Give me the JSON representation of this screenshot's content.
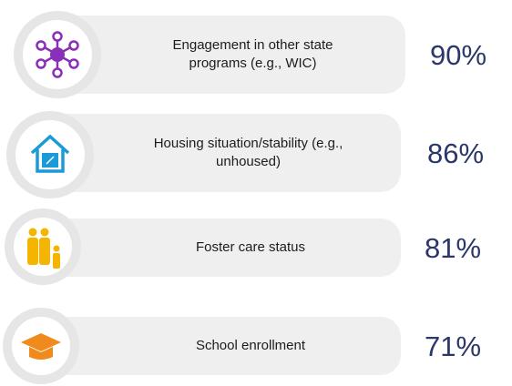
{
  "items": [
    {
      "label": [
        "Engagement in other state",
        "programs (e.g., WIC)"
      ],
      "value": "90%"
    },
    {
      "label": [
        "Housing situation/stability (e.g.,",
        "unhoused)"
      ],
      "value": "86%"
    },
    {
      "label": [
        "Foster care status"
      ],
      "value": "81%"
    },
    {
      "label": [
        "School enrollment"
      ],
      "value": "71%"
    }
  ]
}
